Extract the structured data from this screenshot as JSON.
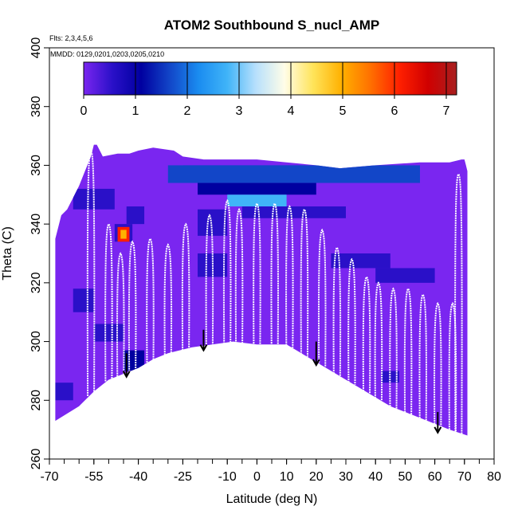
{
  "chart_data": {
    "type": "heatmap",
    "title": "ATOM2 Southbound S_nucl_AMP",
    "flights_note": "Flts: 2,3,4,5,6",
    "dates_note": "MMDD: 0129,0201,0203,0205,0210",
    "xlabel": "Latitude (deg N)",
    "ylabel": "Theta (C)",
    "xlim": [
      -70,
      80
    ],
    "ylim": [
      260,
      400
    ],
    "x_ticks": [
      -70,
      -55,
      -40,
      -25,
      -10,
      0,
      10,
      20,
      30,
      40,
      50,
      60,
      70,
      80
    ],
    "x_tick_labels": [
      "-70",
      "-55",
      "-40",
      "-25",
      "-10",
      "0",
      "10",
      "20",
      "30",
      "40",
      "50",
      "60",
      "70",
      "80"
    ],
    "x_minor_step": 5,
    "y_ticks": [
      260,
      280,
      300,
      320,
      340,
      360,
      380,
      400
    ],
    "y_tick_labels": [
      "260",
      "280",
      "300",
      "320",
      "340",
      "360",
      "380",
      "400"
    ],
    "colorbar": {
      "min": 0,
      "max": 7.2,
      "ticks": [
        0,
        1,
        2,
        3,
        4,
        5,
        6,
        7
      ],
      "tick_labels": [
        "0",
        "1",
        "2",
        "3",
        "4",
        "5",
        "6",
        "7"
      ],
      "colors": [
        "#7a26f0",
        "#2a10c8",
        "#0000a0",
        "#1246c8",
        "#1a8cf0",
        "#40b4f8",
        "#b8e0fc",
        "#fffde8",
        "#ffe45a",
        "#ffb000",
        "#ff7000",
        "#ff2000",
        "#d00000",
        "#a82020"
      ]
    },
    "coverage_top": [
      [
        -68,
        335
      ],
      [
        -67,
        339
      ],
      [
        -66,
        343
      ],
      [
        -64,
        345
      ],
      [
        -62,
        349
      ],
      [
        -60,
        353
      ],
      [
        -58,
        358
      ],
      [
        -56,
        363
      ],
      [
        -55,
        367
      ],
      [
        -54,
        367
      ],
      [
        -52,
        363
      ],
      [
        -47,
        364
      ],
      [
        -43,
        364
      ],
      [
        -40,
        365
      ],
      [
        -35,
        366
      ],
      [
        -28,
        365
      ],
      [
        -25,
        363
      ],
      [
        -18,
        362
      ],
      [
        -10,
        362
      ],
      [
        0,
        362
      ],
      [
        10,
        361
      ],
      [
        20,
        360
      ],
      [
        28,
        359
      ],
      [
        40,
        360
      ],
      [
        55,
        361
      ],
      [
        65,
        361
      ],
      [
        69,
        362
      ],
      [
        70,
        362
      ],
      [
        70.5,
        360
      ],
      [
        71,
        358
      ]
    ],
    "coverage_bottom": [
      [
        -68,
        273
      ],
      [
        -60,
        278
      ],
      [
        -55,
        283
      ],
      [
        -50,
        287
      ],
      [
        -45,
        289
      ],
      [
        -40,
        291
      ],
      [
        -35,
        294
      ],
      [
        -30,
        296
      ],
      [
        -22,
        298
      ],
      [
        -15,
        299
      ],
      [
        -8,
        300
      ],
      [
        0,
        299
      ],
      [
        5,
        299
      ],
      [
        10,
        299
      ],
      [
        15,
        296
      ],
      [
        20,
        293
      ],
      [
        25,
        290
      ],
      [
        30,
        287
      ],
      [
        35,
        284
      ],
      [
        40,
        281
      ],
      [
        45,
        278
      ],
      [
        50,
        276
      ],
      [
        55,
        274
      ],
      [
        60,
        272
      ],
      [
        65,
        270
      ],
      [
        71,
        268
      ]
    ],
    "background_value": 0.15,
    "patches": [
      {
        "lat": [
          -48,
          -42
        ],
        "theta": [
          334,
          340
        ],
        "value": 1.0
      },
      {
        "lat": [
          -47,
          -43
        ],
        "theta": [
          334,
          339
        ],
        "value": 6.0
      },
      {
        "lat": [
          -46,
          -44
        ],
        "theta": [
          335,
          338
        ],
        "value": 5.0
      },
      {
        "lat": [
          -44,
          -38
        ],
        "theta": [
          340,
          346
        ],
        "value": 1.0
      },
      {
        "lat": [
          -45,
          -38
        ],
        "theta": [
          290,
          297
        ],
        "value": 1.3
      },
      {
        "lat": [
          -30,
          55
        ],
        "theta": [
          354,
          360
        ],
        "value": 1.8
      },
      {
        "lat": [
          -25,
          15
        ],
        "theta": [
          356,
          360
        ],
        "value": 2.0
      },
      {
        "lat": [
          -20,
          20
        ],
        "theta": [
          350,
          354
        ],
        "value": 1.3
      },
      {
        "lat": [
          -10,
          10
        ],
        "theta": [
          346,
          350
        ],
        "value": 3.0
      },
      {
        "lat": [
          -5,
          30
        ],
        "theta": [
          342,
          346
        ],
        "value": 1.0
      },
      {
        "lat": [
          -20,
          -10
        ],
        "theta": [
          336,
          345
        ],
        "value": 1.0
      },
      {
        "lat": [
          -20,
          -10
        ],
        "theta": [
          322,
          330
        ],
        "value": 1.0
      },
      {
        "lat": [
          25,
          45
        ],
        "theta": [
          325,
          330
        ],
        "value": 1.0
      },
      {
        "lat": [
          40,
          60
        ],
        "theta": [
          320,
          325
        ],
        "value": 0.7
      },
      {
        "lat": [
          42,
          48
        ],
        "theta": [
          286,
          290
        ],
        "value": 0.8
      },
      {
        "lat": [
          -62,
          -55
        ],
        "theta": [
          310,
          318
        ],
        "value": 0.8
      },
      {
        "lat": [
          -68,
          -62
        ],
        "theta": [
          280,
          286
        ],
        "value": 0.8
      },
      {
        "lat": [
          -55,
          -45
        ],
        "theta": [
          300,
          306
        ],
        "value": 0.8
      },
      {
        "lat": [
          -62,
          -48
        ],
        "theta": [
          345,
          352
        ],
        "value": 0.8
      }
    ],
    "profile_tops": [
      {
        "lat": -56,
        "theta": 365
      },
      {
        "lat": -50,
        "theta": 340
      },
      {
        "lat": -46,
        "theta": 330
      },
      {
        "lat": -42,
        "theta": 334
      },
      {
        "lat": -36,
        "theta": 335
      },
      {
        "lat": -30,
        "theta": 333
      },
      {
        "lat": -24,
        "theta": 340
      },
      {
        "lat": -16,
        "theta": 343
      },
      {
        "lat": -10,
        "theta": 348
      },
      {
        "lat": -6,
        "theta": 345
      },
      {
        "lat": 0,
        "theta": 347
      },
      {
        "lat": 6,
        "theta": 347
      },
      {
        "lat": 11,
        "theta": 346
      },
      {
        "lat": 16,
        "theta": 345
      },
      {
        "lat": 22,
        "theta": 338
      },
      {
        "lat": 27,
        "theta": 332
      },
      {
        "lat": 32,
        "theta": 328
      },
      {
        "lat": 37,
        "theta": 322
      },
      {
        "lat": 41,
        "theta": 320
      },
      {
        "lat": 46,
        "theta": 318
      },
      {
        "lat": 51,
        "theta": 318
      },
      {
        "lat": 56,
        "theta": 316
      },
      {
        "lat": 61,
        "theta": 313
      },
      {
        "lat": 66,
        "theta": 313
      },
      {
        "lat": 68,
        "theta": 357
      }
    ],
    "arrows": [
      {
        "lat": -44,
        "theta_top": 296,
        "theta_tip": 288
      },
      {
        "lat": -18,
        "theta_top": 304,
        "theta_tip": 297
      },
      {
        "lat": 20,
        "theta_top": 300,
        "theta_tip": 292
      },
      {
        "lat": 61,
        "theta_top": 276,
        "theta_tip": 269
      }
    ]
  }
}
